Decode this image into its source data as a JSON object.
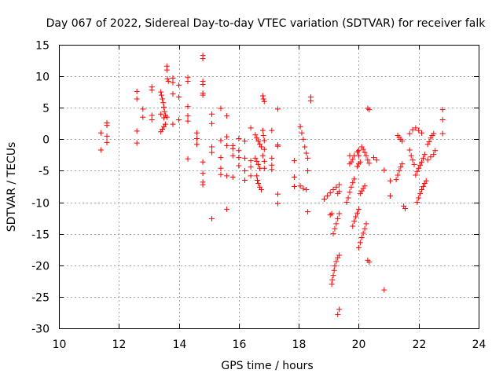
{
  "chart_data": {
    "type": "scatter",
    "title": "Day 067 of 2022, Sidereal Day-to-day VTEC variation (SDTVAR) for receiver falk",
    "xlabel": "GPS time / hours",
    "ylabel": "SDTVAR / TECUs",
    "xlim": [
      10,
      24
    ],
    "ylim": [
      -30,
      15
    ],
    "xticks": [
      10,
      12,
      14,
      16,
      18,
      20,
      22,
      24
    ],
    "yticks": [
      -30,
      -25,
      -20,
      -15,
      -10,
      -5,
      0,
      5,
      10,
      15
    ],
    "grid": true,
    "marker": "plus",
    "color": "#ff0000",
    "points": [
      [
        11.4,
        1.0
      ],
      [
        11.4,
        -1.7
      ],
      [
        11.6,
        2.6
      ],
      [
        11.6,
        2.2
      ],
      [
        11.6,
        0.5
      ],
      [
        11.6,
        -0.5
      ],
      [
        12.6,
        7.6
      ],
      [
        12.6,
        6.4
      ],
      [
        12.6,
        1.3
      ],
      [
        12.6,
        -0.6
      ],
      [
        12.8,
        4.8
      ],
      [
        12.8,
        3.5
      ],
      [
        13.1,
        8.3
      ],
      [
        13.1,
        7.8
      ],
      [
        13.1,
        3.8
      ],
      [
        13.1,
        3.1
      ],
      [
        13.4,
        7.5
      ],
      [
        13.42,
        7.0
      ],
      [
        13.45,
        6.4
      ],
      [
        13.48,
        5.8
      ],
      [
        13.5,
        5.1
      ],
      [
        13.52,
        4.4
      ],
      [
        13.55,
        3.8
      ],
      [
        13.4,
        1.2
      ],
      [
        13.45,
        1.6
      ],
      [
        13.5,
        2.0
      ],
      [
        13.55,
        2.4
      ],
      [
        13.4,
        4.0
      ],
      [
        13.5,
        3.4
      ],
      [
        13.6,
        11.6
      ],
      [
        13.6,
        11.0
      ],
      [
        13.62,
        9.6
      ],
      [
        13.65,
        9.2
      ],
      [
        13.6,
        3.5
      ],
      [
        13.8,
        9.7
      ],
      [
        13.8,
        9.0
      ],
      [
        13.8,
        7.2
      ],
      [
        13.8,
        2.4
      ],
      [
        14.0,
        8.6
      ],
      [
        14.0,
        6.7
      ],
      [
        14.0,
        3.1
      ],
      [
        14.3,
        9.8
      ],
      [
        14.3,
        9.2
      ],
      [
        14.3,
        5.2
      ],
      [
        14.3,
        3.7
      ],
      [
        14.3,
        2.9
      ],
      [
        14.3,
        -3.1
      ],
      [
        14.6,
        1.0
      ],
      [
        14.6,
        0.1
      ],
      [
        14.6,
        -0.8
      ],
      [
        14.8,
        13.3
      ],
      [
        14.8,
        12.8
      ],
      [
        14.8,
        9.2
      ],
      [
        14.8,
        8.7
      ],
      [
        14.8,
        7.3
      ],
      [
        14.8,
        7.0
      ],
      [
        14.8,
        -3.6
      ],
      [
        14.8,
        -5.4
      ],
      [
        14.8,
        -6.8
      ],
      [
        14.8,
        -7.2
      ],
      [
        15.1,
        4.0
      ],
      [
        15.1,
        2.5
      ],
      [
        15.1,
        -1.2
      ],
      [
        15.1,
        -2.1
      ],
      [
        15.1,
        -12.6
      ],
      [
        15.4,
        4.9
      ],
      [
        15.4,
        -0.2
      ],
      [
        15.4,
        -2.9
      ],
      [
        15.4,
        -4.6
      ],
      [
        15.4,
        -5.6
      ],
      [
        15.6,
        3.7
      ],
      [
        15.6,
        0.4
      ],
      [
        15.6,
        -1.0
      ],
      [
        15.6,
        -5.8
      ],
      [
        15.6,
        -11.1
      ],
      [
        15.8,
        -1.0
      ],
      [
        15.8,
        -1.5
      ],
      [
        15.8,
        -2.6
      ],
      [
        15.8,
        -6.0
      ],
      [
        16.0,
        0.1
      ],
      [
        16.0,
        -1.8
      ],
      [
        16.0,
        -2.9
      ],
      [
        16.0,
        -4.2
      ],
      [
        16.2,
        -0.3
      ],
      [
        16.2,
        -3.0
      ],
      [
        16.2,
        -5.0
      ],
      [
        16.2,
        -6.5
      ],
      [
        16.4,
        1.8
      ],
      [
        16.4,
        -3.4
      ],
      [
        16.4,
        -4.4
      ],
      [
        16.4,
        -5.8
      ],
      [
        16.55,
        0.7
      ],
      [
        16.6,
        0.2
      ],
      [
        16.65,
        -0.3
      ],
      [
        16.7,
        -0.8
      ],
      [
        16.75,
        -1.2
      ],
      [
        16.55,
        -3.0
      ],
      [
        16.6,
        -3.5
      ],
      [
        16.65,
        -4.0
      ],
      [
        16.7,
        -4.6
      ],
      [
        16.6,
        -5.8
      ],
      [
        16.62,
        -6.5
      ],
      [
        16.65,
        -7.0
      ],
      [
        16.7,
        -7.6
      ],
      [
        16.75,
        -8.0
      ],
      [
        16.8,
        6.9
      ],
      [
        16.82,
        6.4
      ],
      [
        16.85,
        6.0
      ],
      [
        16.8,
        1.4
      ],
      [
        16.82,
        0.6
      ],
      [
        16.85,
        -0.2
      ],
      [
        16.85,
        -1.6
      ],
      [
        16.8,
        -2.6
      ],
      [
        16.85,
        -3.5
      ],
      [
        16.85,
        -4.6
      ],
      [
        17.1,
        1.4
      ],
      [
        17.1,
        -3.0
      ],
      [
        17.1,
        -4.1
      ],
      [
        17.1,
        -4.8
      ],
      [
        17.3,
        4.8
      ],
      [
        17.3,
        -0.9
      ],
      [
        17.3,
        -1.1
      ],
      [
        17.3,
        -8.7
      ],
      [
        17.3,
        -10.2
      ],
      [
        17.85,
        -3.4
      ],
      [
        17.85,
        -6.0
      ],
      [
        17.85,
        -7.5
      ],
      [
        18.05,
        2.0
      ],
      [
        18.1,
        1.0
      ],
      [
        18.15,
        0.0
      ],
      [
        18.2,
        -1.2
      ],
      [
        18.25,
        -2.2
      ],
      [
        18.3,
        -3.0
      ],
      [
        18.05,
        -7.4
      ],
      [
        18.15,
        -7.8
      ],
      [
        18.25,
        -8.0
      ],
      [
        18.3,
        -11.5
      ],
      [
        18.3,
        -5.0
      ],
      [
        18.4,
        6.7
      ],
      [
        18.4,
        6.1
      ],
      [
        18.85,
        -9.5
      ],
      [
        18.95,
        -9.0
      ],
      [
        19.05,
        -8.5
      ],
      [
        19.15,
        -8.0
      ],
      [
        19.25,
        -7.6
      ],
      [
        19.35,
        -7.2
      ],
      [
        19.05,
        -12.0
      ],
      [
        19.1,
        -11.8
      ],
      [
        19.15,
        -15.0
      ],
      [
        19.2,
        -14.2
      ],
      [
        19.25,
        -13.4
      ],
      [
        19.3,
        -12.6
      ],
      [
        19.35,
        -11.8
      ],
      [
        19.1,
        -23.0
      ],
      [
        19.12,
        -22.3
      ],
      [
        19.15,
        -21.6
      ],
      [
        19.18,
        -20.8
      ],
      [
        19.2,
        -20.1
      ],
      [
        19.25,
        -19.4
      ],
      [
        19.3,
        -18.8
      ],
      [
        19.35,
        -18.4
      ],
      [
        19.3,
        -27.8
      ],
      [
        19.35,
        -27.0
      ],
      [
        19.3,
        -8.6
      ],
      [
        19.35,
        -8.3
      ],
      [
        19.6,
        -10.0
      ],
      [
        19.65,
        -9.3
      ],
      [
        19.7,
        -8.4
      ],
      [
        19.75,
        -7.6
      ],
      [
        19.8,
        -6.9
      ],
      [
        19.85,
        -6.3
      ],
      [
        19.7,
        -3.9
      ],
      [
        19.75,
        -3.6
      ],
      [
        19.8,
        -3.2
      ],
      [
        19.7,
        -2.6
      ],
      [
        19.85,
        -2.6
      ],
      [
        20.0,
        -2.6
      ],
      [
        19.8,
        -13.8
      ],
      [
        19.85,
        -13.0
      ],
      [
        19.9,
        -12.3
      ],
      [
        19.95,
        -11.7
      ],
      [
        20.0,
        -11.1
      ],
      [
        19.95,
        -4.3
      ],
      [
        20.0,
        -3.9
      ],
      [
        20.05,
        -3.6
      ],
      [
        19.95,
        -2.0
      ],
      [
        20.0,
        -1.8
      ],
      [
        20.0,
        -17.2
      ],
      [
        20.05,
        -16.4
      ],
      [
        20.1,
        -15.6
      ],
      [
        20.15,
        -14.9
      ],
      [
        20.2,
        -14.2
      ],
      [
        20.25,
        -13.4
      ],
      [
        20.05,
        -8.6
      ],
      [
        20.1,
        -8.2
      ],
      [
        20.15,
        -7.8
      ],
      [
        20.2,
        -7.4
      ],
      [
        20.1,
        -1.2
      ],
      [
        20.15,
        -1.6
      ],
      [
        20.2,
        -2.1
      ],
      [
        20.25,
        -2.6
      ],
      [
        20.3,
        -3.3
      ],
      [
        20.35,
        -3.8
      ],
      [
        20.3,
        4.9
      ],
      [
        20.35,
        4.7
      ],
      [
        20.3,
        -19.2
      ],
      [
        20.35,
        -19.5
      ],
      [
        20.5,
        -2.9
      ],
      [
        20.6,
        -3.3
      ],
      [
        20.85,
        -4.9
      ],
      [
        20.85,
        -23.9
      ],
      [
        21.05,
        -6.6
      ],
      [
        21.05,
        -9.0
      ],
      [
        21.25,
        -6.4
      ],
      [
        21.3,
        -5.7
      ],
      [
        21.35,
        -5.0
      ],
      [
        21.4,
        -4.4
      ],
      [
        21.45,
        -3.9
      ],
      [
        21.3,
        0.6
      ],
      [
        21.35,
        0.3
      ],
      [
        21.4,
        0.0
      ],
      [
        21.45,
        -0.3
      ],
      [
        21.5,
        -10.6
      ],
      [
        21.55,
        -11.0
      ],
      [
        21.7,
        -1.7
      ],
      [
        21.75,
        -2.6
      ],
      [
        21.8,
        -3.3
      ],
      [
        21.85,
        -4.0
      ],
      [
        21.7,
        0.9
      ],
      [
        21.8,
        1.5
      ],
      [
        21.9,
        1.8
      ],
      [
        22.0,
        1.4
      ],
      [
        22.1,
        1.0
      ],
      [
        21.9,
        -5.7
      ],
      [
        21.95,
        -5.1
      ],
      [
        22.0,
        -4.6
      ],
      [
        22.05,
        -4.1
      ],
      [
        22.1,
        -3.6
      ],
      [
        22.15,
        -3.0
      ],
      [
        22.2,
        -2.4
      ],
      [
        21.95,
        -10.0
      ],
      [
        22.0,
        -9.3
      ],
      [
        22.05,
        -8.6
      ],
      [
        22.1,
        -8.0
      ],
      [
        22.15,
        -7.5
      ],
      [
        22.2,
        -7.0
      ],
      [
        22.25,
        -6.6
      ],
      [
        22.3,
        -0.8
      ],
      [
        22.35,
        -0.4
      ],
      [
        22.4,
        0.2
      ],
      [
        22.45,
        0.6
      ],
      [
        22.5,
        0.9
      ],
      [
        22.3,
        -3.3
      ],
      [
        22.4,
        -2.8
      ],
      [
        22.5,
        -2.4
      ],
      [
        22.55,
        -1.8
      ],
      [
        22.8,
        4.7
      ],
      [
        22.8,
        3.1
      ],
      [
        22.8,
        0.9
      ]
    ]
  }
}
